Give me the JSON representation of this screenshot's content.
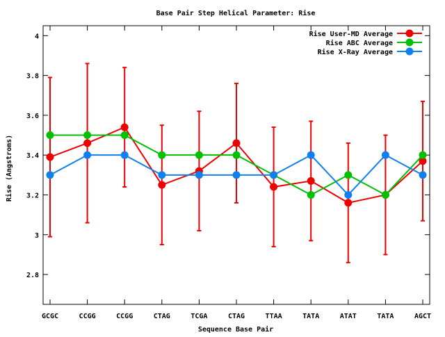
{
  "chart_data": {
    "type": "line",
    "title": "Base Pair Step Helical Parameter: Rise",
    "xlabel": "Sequence Base Pair",
    "ylabel": "Rise (Angstroms)",
    "ylim": [
      2.65,
      4.05
    ],
    "yticks": [
      2.8,
      3,
      3.2,
      3.4,
      3.6,
      3.8,
      4
    ],
    "ytick_labels": [
      "2.8",
      "3",
      "3.2",
      "3.4",
      "3.6",
      "3.8",
      "4"
    ],
    "categories": [
      "GCGC",
      "CCGG",
      "CCGG",
      "CTAG",
      "TCGA",
      "CTAG",
      "TTAA",
      "TATA",
      "ATAT",
      "TATA",
      "AGCT"
    ],
    "legend_position": "top-right",
    "grid": false,
    "series": [
      {
        "name": "Rise User-MD Average",
        "color": "#ee0000",
        "values": [
          3.39,
          3.46,
          3.54,
          3.25,
          3.32,
          3.46,
          3.24,
          3.27,
          3.16,
          3.2,
          3.37
        ],
        "error": [
          0.4,
          0.4,
          0.3,
          0.3,
          0.3,
          0.3,
          0.3,
          0.3,
          0.3,
          0.3,
          0.3
        ]
      },
      {
        "name": "Rise ABC Average",
        "color": "#00c000",
        "values": [
          3.5,
          3.5,
          3.5,
          3.4,
          3.4,
          3.4,
          3.3,
          3.2,
          3.3,
          3.2,
          3.4
        ]
      },
      {
        "name": "Rise X-Ray Average",
        "color": "#1080f0",
        "values": [
          3.3,
          3.4,
          3.4,
          3.3,
          3.3,
          3.3,
          3.3,
          3.4,
          3.2,
          3.4,
          3.3
        ]
      }
    ]
  }
}
